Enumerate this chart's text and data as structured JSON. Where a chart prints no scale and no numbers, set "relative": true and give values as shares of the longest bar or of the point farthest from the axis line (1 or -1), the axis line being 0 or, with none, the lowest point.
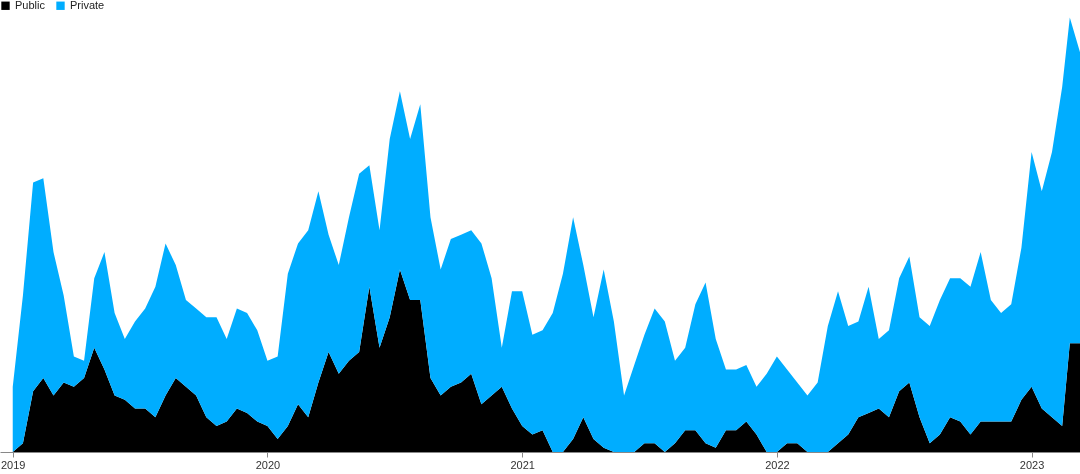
{
  "chart_data": {
    "type": "area",
    "stacked": true,
    "relative": true,
    "legend": "top left",
    "x": [
      2019,
      2019.04,
      2019.08,
      2019.12,
      2019.16,
      2019.2,
      2019.24,
      2019.28,
      2019.32,
      2019.36,
      2019.4,
      2019.44,
      2019.48,
      2019.52,
      2019.56,
      2019.6,
      2019.64,
      2019.68,
      2019.72,
      2019.76,
      2019.8,
      2019.84,
      2019.88,
      2019.92,
      2019.96,
      2020,
      2020.04,
      2020.08,
      2020.12,
      2020.16,
      2020.2,
      2020.24,
      2020.28,
      2020.32,
      2020.36,
      2020.4,
      2020.44,
      2020.48,
      2020.52,
      2020.56,
      2020.6,
      2020.64,
      2020.68,
      2020.72,
      2020.76,
      2020.8,
      2020.84,
      2020.88,
      2020.92,
      2020.96,
      2021,
      2021.04,
      2021.08,
      2021.12,
      2021.16,
      2021.2,
      2021.24,
      2021.28,
      2021.32,
      2021.36,
      2021.4,
      2021.44,
      2021.48,
      2021.52,
      2021.56,
      2021.6,
      2021.64,
      2021.68,
      2021.72,
      2021.76,
      2021.8,
      2021.84,
      2021.88,
      2021.92,
      2021.96,
      2022,
      2022.04,
      2022.08,
      2022.12,
      2022.16,
      2022.2,
      2022.24,
      2022.28,
      2022.32,
      2022.36,
      2022.4,
      2022.44,
      2022.48,
      2022.52,
      2022.56,
      2022.6,
      2022.64,
      2022.68,
      2022.72,
      2022.76,
      2022.8,
      2022.84,
      2022.88,
      2022.92,
      2022.96,
      2023,
      2023.04,
      2023.08,
      2023.12,
      2023.15,
      2023.19
    ],
    "xlim": [
      2018.95,
      2023.19
    ],
    "xticks": [
      2019,
      2020,
      2021,
      2022,
      2023
    ],
    "series": [
      {
        "name": "Public",
        "color": "#000000",
        "values": [
          0,
          0.02,
          0.14,
          0.17,
          0.13,
          0.16,
          0.15,
          0.17,
          0.24,
          0.19,
          0.13,
          0.12,
          0.1,
          0.1,
          0.08,
          0.13,
          0.17,
          0.15,
          0.13,
          0.08,
          0.06,
          0.07,
          0.1,
          0.09,
          0.07,
          0.06,
          0.03,
          0.06,
          0.11,
          0.08,
          0.16,
          0.23,
          0.18,
          0.21,
          0.23,
          0.38,
          0.24,
          0.31,
          0.42,
          0.35,
          0.35,
          0.17,
          0.13,
          0.15,
          0.16,
          0.18,
          0.11,
          0.13,
          0.15,
          0.1,
          0.06,
          0.04,
          0.05,
          0,
          0,
          0.03,
          0.08,
          0.03,
          0.01,
          0,
          0,
          0,
          0.02,
          0.02,
          0,
          0.02,
          0.05,
          0.05,
          0.02,
          0.01,
          0.05,
          0.05,
          0.07,
          0.04,
          0,
          0,
          0.02,
          0.02,
          0,
          0,
          0,
          0.02,
          0.04,
          0.08,
          0.09,
          0.1,
          0.08,
          0.14,
          0.16,
          0.08,
          0.02,
          0.04,
          0.08,
          0.07,
          0.04,
          0.07,
          0.07,
          0.07,
          0.07,
          0.12,
          0.15,
          0.1,
          0.08,
          0.06,
          0.25,
          0.25
        ]
      },
      {
        "name": "Private",
        "color": "#00adff",
        "values": [
          0.15,
          0.34,
          0.48,
          0.46,
          0.33,
          0.2,
          0.07,
          0.04,
          0.16,
          0.27,
          0.19,
          0.14,
          0.2,
          0.23,
          0.3,
          0.35,
          0.26,
          0.2,
          0.2,
          0.23,
          0.25,
          0.19,
          0.23,
          0.23,
          0.21,
          0.15,
          0.19,
          0.35,
          0.37,
          0.43,
          0.44,
          0.27,
          0.25,
          0.33,
          0.41,
          0.28,
          0.27,
          0.41,
          0.41,
          0.37,
          0.45,
          0.37,
          0.29,
          0.34,
          0.34,
          0.33,
          0.37,
          0.27,
          0.09,
          0.27,
          0.31,
          0.23,
          0.23,
          0.32,
          0.41,
          0.51,
          0.35,
          0.28,
          0.41,
          0.3,
          0.13,
          0.2,
          0.25,
          0.31,
          0.3,
          0.19,
          0.19,
          0.29,
          0.37,
          0.25,
          0.14,
          0.14,
          0.13,
          0.11,
          0.18,
          0.22,
          0.17,
          0.14,
          0.13,
          0.16,
          0.29,
          0.35,
          0.25,
          0.22,
          0.29,
          0.16,
          0.2,
          0.26,
          0.29,
          0.23,
          0.27,
          0.31,
          0.32,
          0.33,
          0.34,
          0.39,
          0.28,
          0.25,
          0.27,
          0.35,
          0.54,
          0.5,
          0.61,
          0.78,
          0.75,
          0.67
        ]
      }
    ]
  }
}
